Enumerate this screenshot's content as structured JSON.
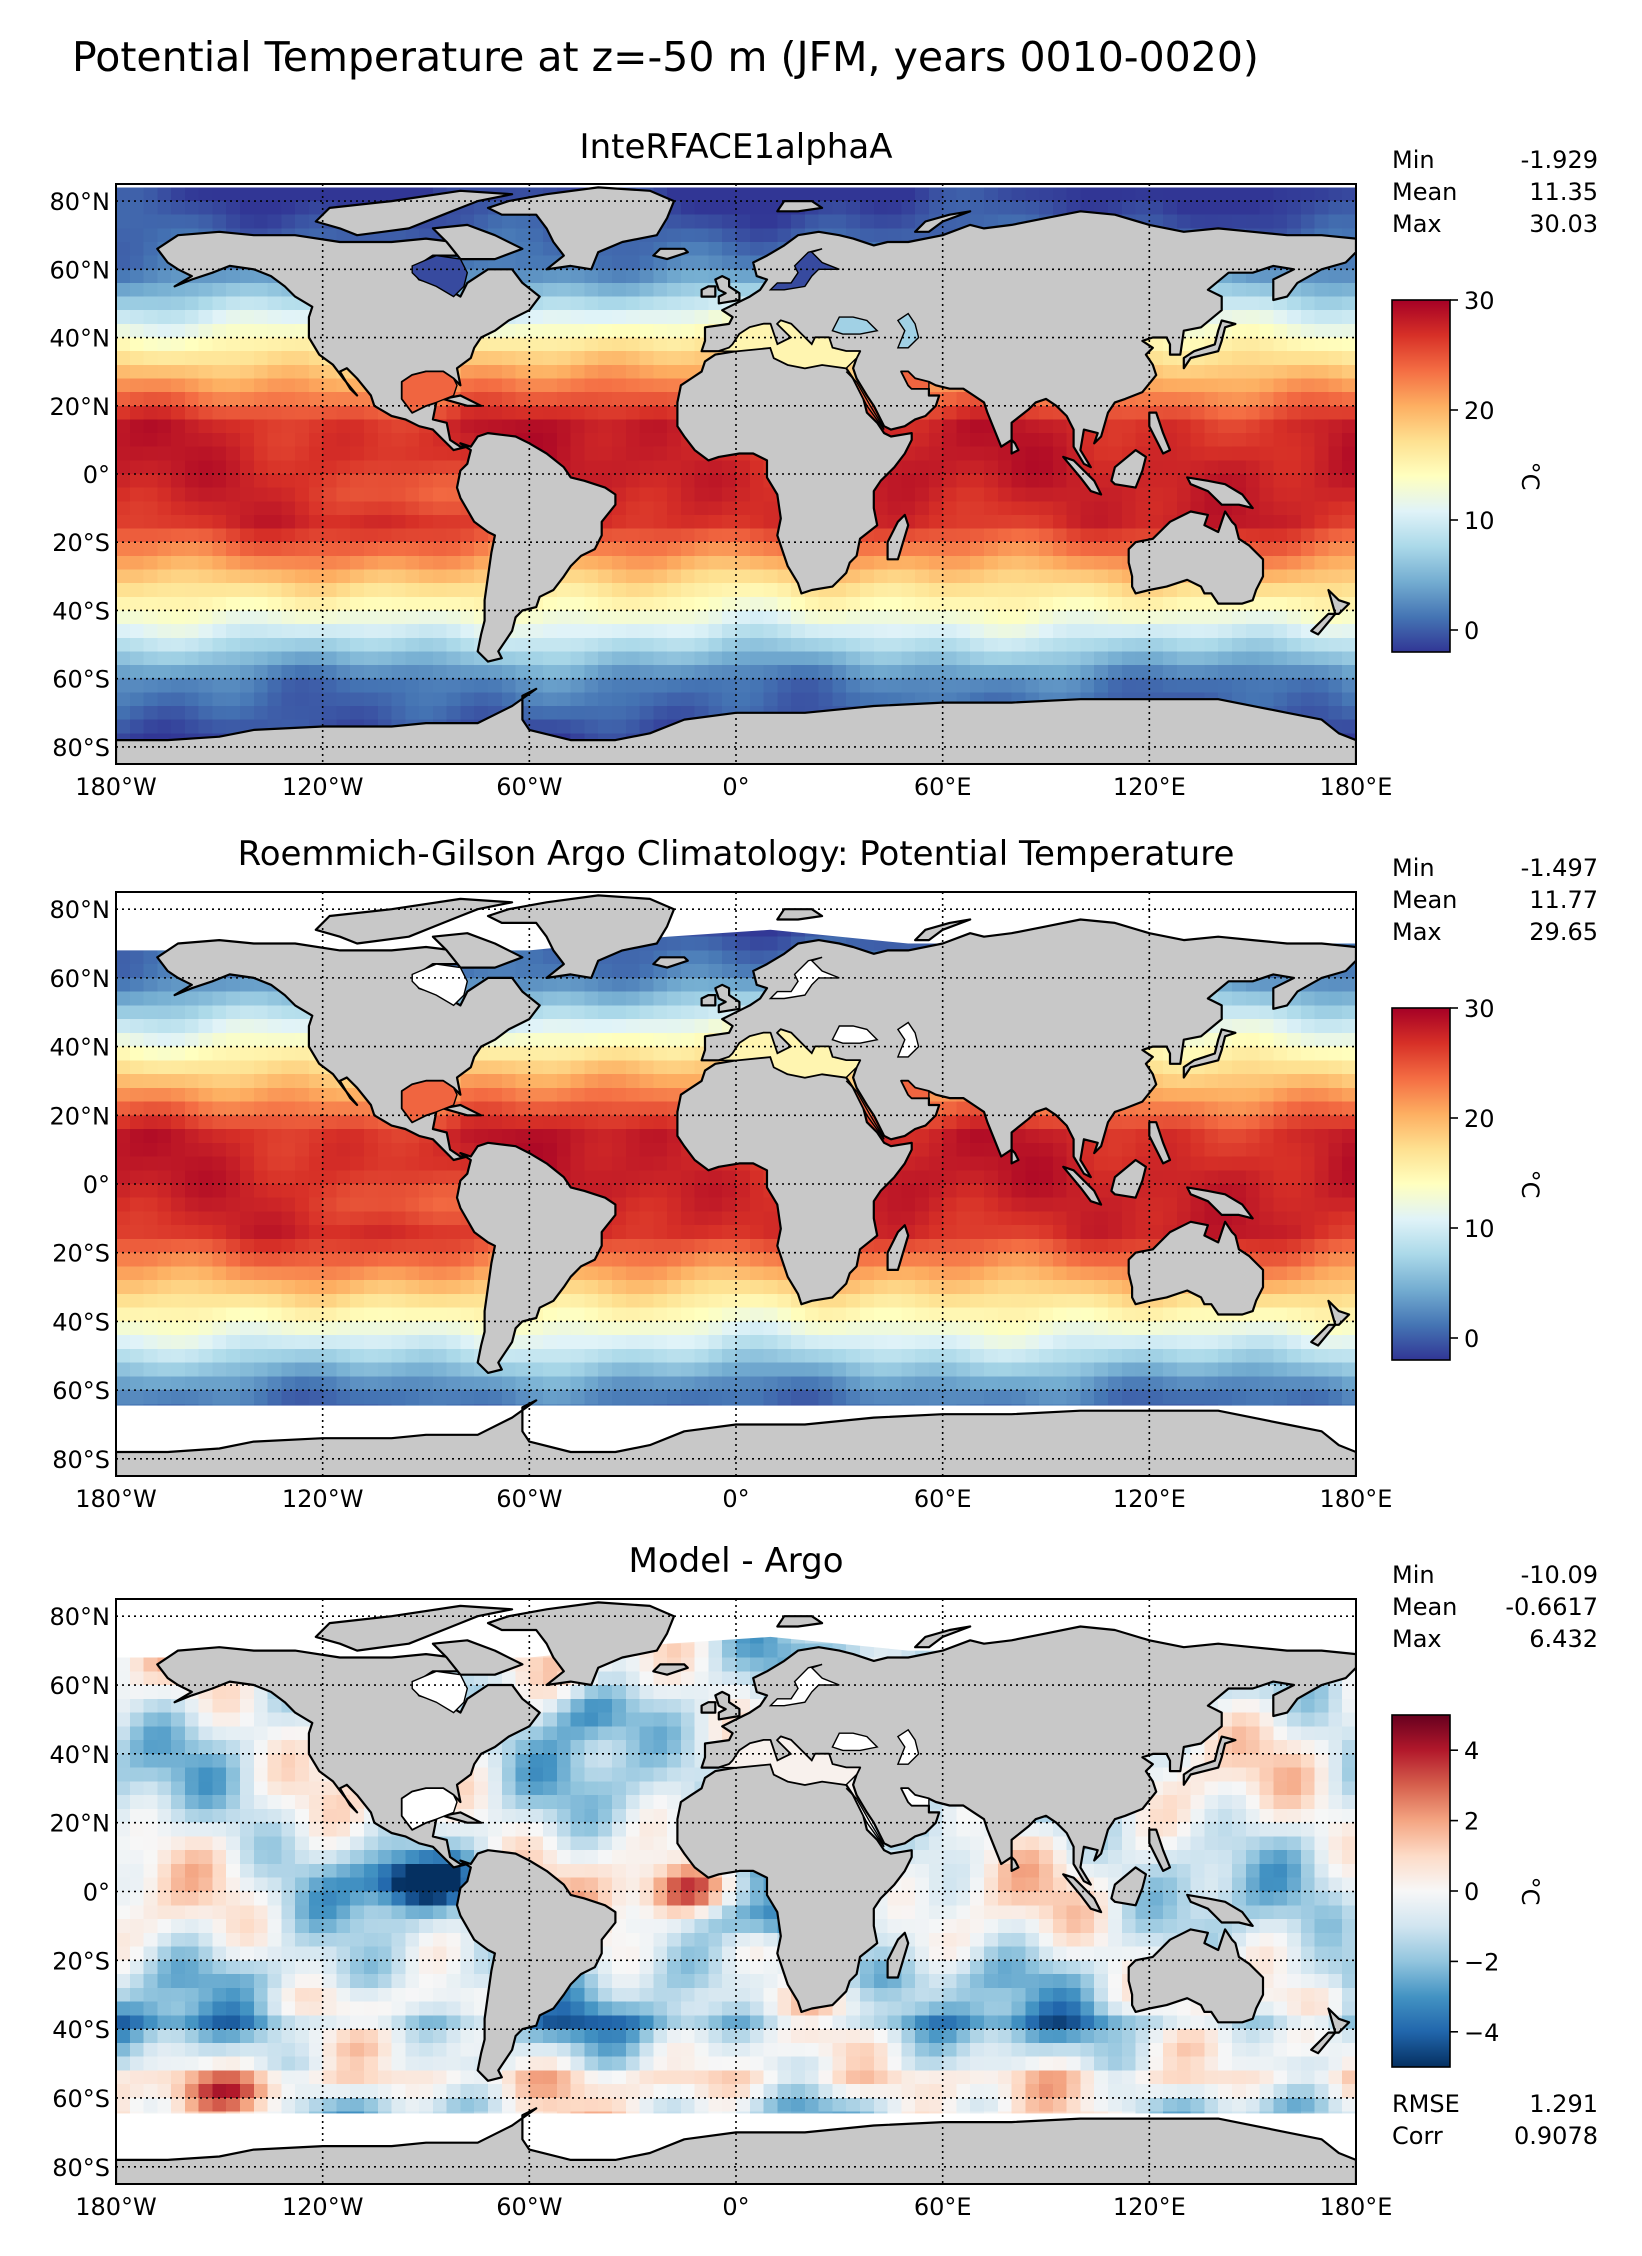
{
  "figure_title": "Potential Temperature at z=-50 m (JFM, years 0010-0020)",
  "colors": {
    "land": "#c8c8c8",
    "land_stroke": "#000000",
    "mask": "#ffffff"
  },
  "chart_data": [
    {
      "type": "heatmap",
      "title": "InteRFACE1alphaA",
      "stats": [
        {
          "label": "Min",
          "value": "-1.929"
        },
        {
          "label": "Mean",
          "value": "11.35"
        },
        {
          "label": "Max",
          "value": "30.03"
        }
      ],
      "x_ticks": [
        "180°W",
        "120°W",
        "60°W",
        "0°",
        "60°E",
        "120°E",
        "180°E"
      ],
      "y_ticks": [
        "80°N",
        "60°N",
        "40°N",
        "20°N",
        "0°",
        "20°S",
        "40°S",
        "60°S",
        "80°S"
      ],
      "colorbar": {
        "label": "°C",
        "vmin": -2,
        "vmax": 30,
        "ticks": [
          0,
          10,
          20,
          30
        ],
        "cmap": "RdYlBu_r"
      },
      "field": {
        "kind": "temperature",
        "vmin": -2,
        "vmax": 30,
        "argo_mask": false
      }
    },
    {
      "type": "heatmap",
      "title": "Roemmich-Gilson Argo Climatology: Potential Temperature",
      "stats": [
        {
          "label": "Min",
          "value": "-1.497"
        },
        {
          "label": "Mean",
          "value": "11.77"
        },
        {
          "label": "Max",
          "value": "29.65"
        }
      ],
      "x_ticks": [
        "180°W",
        "120°W",
        "60°W",
        "0°",
        "60°E",
        "120°E",
        "180°E"
      ],
      "y_ticks": [
        "80°N",
        "60°N",
        "40°N",
        "20°N",
        "0°",
        "20°S",
        "40°S",
        "60°S",
        "80°S"
      ],
      "colorbar": {
        "label": "°C",
        "vmin": -2,
        "vmax": 30,
        "ticks": [
          0,
          10,
          20,
          30
        ],
        "cmap": "RdYlBu_r"
      },
      "field": {
        "kind": "temperature",
        "vmin": -2,
        "vmax": 30,
        "argo_mask": true
      }
    },
    {
      "type": "heatmap",
      "title": "Model - Argo",
      "stats": [
        {
          "label": "Min",
          "value": "-10.09"
        },
        {
          "label": "Mean",
          "value": "-0.6617"
        },
        {
          "label": "Max",
          "value": "6.432"
        }
      ],
      "bottom_stats": [
        {
          "label": "RMSE",
          "value": "1.291"
        },
        {
          "label": "Corr",
          "value": "0.9078"
        }
      ],
      "x_ticks": [
        "180°W",
        "120°W",
        "60°W",
        "0°",
        "60°E",
        "120°E",
        "180°E"
      ],
      "y_ticks": [
        "80°N",
        "60°N",
        "40°N",
        "20°N",
        "0°",
        "20°S",
        "40°S",
        "60°S",
        "80°S"
      ],
      "colorbar": {
        "label": "°C",
        "vmin": -5,
        "vmax": 5,
        "ticks": [
          4,
          2,
          0,
          -2,
          -4
        ],
        "tick_labels": [
          "4",
          "2",
          "0",
          "−2",
          "−4"
        ],
        "cmap": "RdBu_r"
      },
      "field": {
        "kind": "bias",
        "vmin": -5,
        "vmax": 5,
        "argo_mask": true
      }
    }
  ]
}
